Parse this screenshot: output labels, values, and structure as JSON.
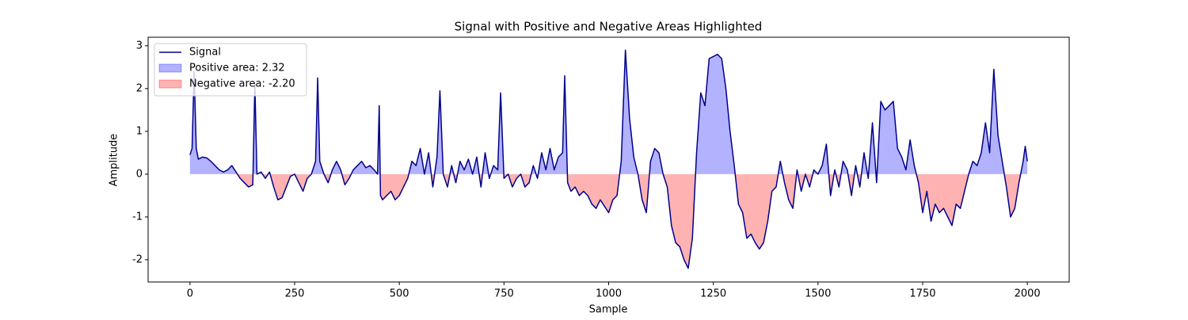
{
  "chart_data": {
    "type": "line",
    "title": "Signal with Positive and Negative Areas Highlighted",
    "xlabel": "Sample",
    "ylabel": "Amplitude",
    "xlim": [
      -100,
      2100
    ],
    "ylim": [
      -2.52,
      3.2
    ],
    "xticks": [
      0,
      250,
      500,
      750,
      1000,
      1250,
      1500,
      1750,
      2000
    ],
    "yticks": [
      -2,
      -1,
      0,
      1,
      2,
      3
    ],
    "grid": false,
    "legend": "upper left",
    "x": [
      0,
      5,
      10,
      15,
      20,
      30,
      40,
      50,
      60,
      70,
      80,
      90,
      100,
      110,
      120,
      130,
      140,
      150,
      155,
      160,
      170,
      180,
      190,
      200,
      210,
      220,
      230,
      240,
      250,
      260,
      270,
      280,
      290,
      300,
      305,
      310,
      320,
      330,
      340,
      350,
      360,
      370,
      380,
      390,
      400,
      410,
      420,
      430,
      440,
      448,
      452,
      455,
      460,
      470,
      480,
      490,
      500,
      510,
      520,
      530,
      540,
      550,
      560,
      570,
      580,
      590,
      597,
      605,
      615,
      625,
      635,
      645,
      655,
      665,
      675,
      685,
      695,
      705,
      715,
      725,
      735,
      742,
      750,
      760,
      770,
      780,
      790,
      800,
      810,
      820,
      830,
      840,
      850,
      860,
      870,
      880,
      890,
      895,
      902,
      910,
      920,
      930,
      940,
      950,
      960,
      970,
      980,
      990,
      1000,
      1010,
      1020,
      1030,
      1040,
      1050,
      1060,
      1070,
      1080,
      1090,
      1100,
      1110,
      1120,
      1130,
      1140,
      1150,
      1160,
      1170,
      1180,
      1190,
      1200,
      1210,
      1220,
      1230,
      1240,
      1250,
      1260,
      1270,
      1280,
      1290,
      1300,
      1310,
      1320,
      1330,
      1340,
      1350,
      1360,
      1370,
      1380,
      1390,
      1400,
      1410,
      1420,
      1430,
      1440,
      1450,
      1460,
      1470,
      1480,
      1490,
      1500,
      1510,
      1520,
      1530,
      1540,
      1550,
      1560,
      1570,
      1580,
      1590,
      1600,
      1610,
      1620,
      1630,
      1640,
      1650,
      1660,
      1670,
      1680,
      1690,
      1700,
      1710,
      1720,
      1730,
      1740,
      1750,
      1760,
      1770,
      1780,
      1790,
      1800,
      1810,
      1820,
      1830,
      1840,
      1850,
      1860,
      1870,
      1880,
      1890,
      1900,
      1910,
      1920,
      1930,
      1940,
      1950,
      1960,
      1970,
      1980,
      1990,
      1995,
      2000
    ],
    "series": [
      {
        "name": "Signal",
        "color": "#00008b",
        "values": [
          0.45,
          0.6,
          2.4,
          0.6,
          0.35,
          0.4,
          0.38,
          0.3,
          0.2,
          0.1,
          0.05,
          0.1,
          0.2,
          0.05,
          -0.1,
          -0.2,
          -0.3,
          -0.25,
          2.1,
          0.0,
          0.05,
          -0.1,
          0.05,
          -0.3,
          -0.6,
          -0.55,
          -0.3,
          -0.05,
          0.0,
          -0.2,
          -0.4,
          -0.1,
          0.0,
          0.3,
          2.25,
          0.3,
          0.0,
          -0.2,
          0.1,
          0.3,
          0.1,
          -0.25,
          -0.1,
          0.1,
          0.2,
          0.3,
          0.15,
          0.2,
          0.1,
          0.0,
          1.6,
          -0.5,
          -0.6,
          -0.5,
          -0.4,
          -0.6,
          -0.5,
          -0.3,
          -0.1,
          0.3,
          0.2,
          0.6,
          0.0,
          0.5,
          -0.3,
          0.4,
          1.95,
          0.0,
          -0.3,
          0.2,
          -0.2,
          0.3,
          0.1,
          0.35,
          0.0,
          0.4,
          -0.3,
          0.5,
          -0.1,
          0.2,
          0.1,
          1.9,
          -0.1,
          0.0,
          -0.3,
          -0.1,
          0.0,
          -0.3,
          -0.2,
          0.2,
          -0.1,
          0.5,
          0.1,
          0.6,
          0.1,
          0.4,
          0.5,
          2.3,
          -0.2,
          -0.4,
          -0.3,
          -0.5,
          -0.4,
          -0.5,
          -0.7,
          -0.8,
          -0.6,
          -0.75,
          -0.9,
          -0.6,
          -0.5,
          0.3,
          2.9,
          1.3,
          0.4,
          0.0,
          -0.6,
          -0.9,
          0.3,
          0.6,
          0.5,
          0.0,
          -0.3,
          -1.2,
          -1.6,
          -1.7,
          -2.0,
          -2.2,
          -1.5,
          0.5,
          1.9,
          1.6,
          2.7,
          2.75,
          2.8,
          2.7,
          2.0,
          1.0,
          0.2,
          -0.7,
          -0.9,
          -1.5,
          -1.4,
          -1.6,
          -1.75,
          -1.6,
          -1.1,
          -0.4,
          -0.3,
          0.3,
          -0.2,
          -0.6,
          -0.8,
          0.1,
          -0.4,
          0.0,
          -0.3,
          0.1,
          0.0,
          0.2,
          0.7,
          -0.5,
          0.1,
          -0.3,
          0.3,
          0.1,
          -0.5,
          0.2,
          -0.3,
          0.5,
          -0.1,
          1.2,
          -0.2,
          1.7,
          1.5,
          1.6,
          1.7,
          0.6,
          0.4,
          0.1,
          0.8,
          0.2,
          -0.2,
          -0.9,
          -0.4,
          -1.1,
          -0.7,
          -0.9,
          -0.8,
          -1.0,
          -1.2,
          -0.7,
          -0.8,
          -0.4,
          0.0,
          0.3,
          0.2,
          0.5,
          1.2,
          0.5,
          2.45,
          0.9,
          0.3,
          -0.3,
          -1.0,
          -0.8,
          -0.2,
          0.3,
          0.65,
          0.3
        ]
      }
    ],
    "fills": [
      {
        "name": "Positive area: 2.32",
        "color": "#0000ff",
        "where": "positive"
      },
      {
        "name": "Negative area: -2.20",
        "color": "#ff0000",
        "where": "negative"
      }
    ]
  }
}
